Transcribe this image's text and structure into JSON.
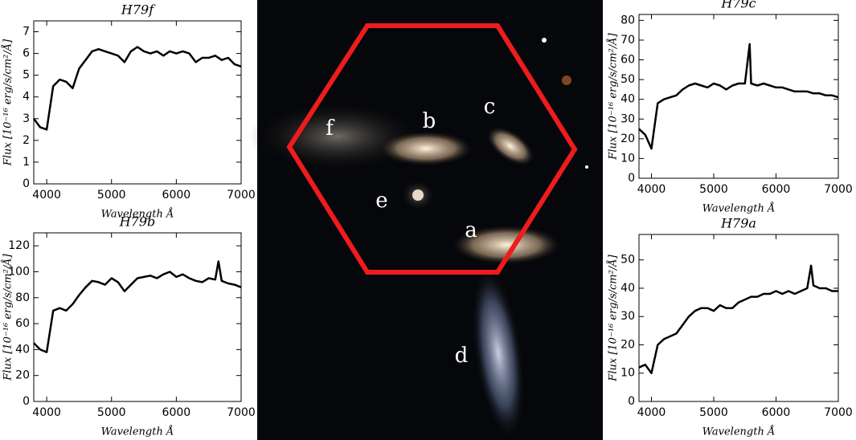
{
  "chart_data": [
    {
      "type": "line",
      "title": "H79f",
      "x_label": "Wavelength Å",
      "y_label": "Flux [10⁻¹⁶ erg/s/cm²/Å]",
      "x": [
        3800,
        3900,
        4000,
        4100,
        4200,
        4300,
        4400,
        4500,
        4600,
        4700,
        4800,
        4900,
        5000,
        5100,
        5200,
        5300,
        5400,
        5500,
        5600,
        5700,
        5800,
        5900,
        6000,
        6100,
        6200,
        6300,
        6400,
        6500,
        6600,
        6700,
        6800,
        6900,
        7000
      ],
      "series": [
        {
          "color": "#000000",
          "values": [
            3.0,
            2.6,
            2.5,
            4.5,
            4.8,
            4.7,
            4.4,
            5.3,
            5.7,
            6.1,
            6.2,
            6.1,
            6.0,
            5.9,
            5.6,
            6.1,
            6.3,
            6.1,
            6.0,
            6.1,
            5.9,
            6.1,
            6.0,
            6.1,
            6.0,
            5.6,
            5.8,
            5.8,
            5.9,
            5.7,
            5.8,
            5.5,
            5.4
          ]
        }
      ],
      "xlim": [
        3800,
        7000
      ],
      "xticks": [
        4000,
        5000,
        6000,
        7000
      ],
      "ylim": [
        0,
        7.5
      ],
      "yticks": [
        0,
        1,
        2,
        3,
        4,
        5,
        6,
        7
      ]
    },
    {
      "type": "line",
      "title": "H79b",
      "x_label": "Wavelength Å",
      "y_label": "Flux [10⁻¹⁶ erg/s/cm²/Å]",
      "x": [
        3800,
        3900,
        4000,
        4100,
        4200,
        4300,
        4400,
        4500,
        4600,
        4700,
        4800,
        4900,
        5000,
        5100,
        5200,
        5300,
        5400,
        5500,
        5600,
        5700,
        5800,
        5900,
        6000,
        6100,
        6200,
        6300,
        6400,
        6500,
        6600,
        6650,
        6700,
        6800,
        6900,
        7000
      ],
      "series": [
        {
          "color": "#000000",
          "values": [
            45,
            40,
            38,
            70,
            72,
            70,
            75,
            82,
            88,
            93,
            92,
            90,
            95,
            92,
            85,
            90,
            95,
            96,
            97,
            95,
            98,
            100,
            96,
            98,
            95,
            93,
            92,
            95,
            94,
            108,
            93,
            91,
            90,
            88
          ]
        }
      ],
      "xlim": [
        3800,
        7000
      ],
      "xticks": [
        4000,
        5000,
        6000,
        7000
      ],
      "ylim": [
        0,
        130
      ],
      "yticks": [
        0,
        20,
        40,
        60,
        80,
        100,
        120
      ]
    },
    {
      "type": "line",
      "title": "H79c",
      "x_label": "Wavelength Å",
      "y_label": "Flux [10⁻¹⁶ erg/s/cm²/Å]",
      "x": [
        3800,
        3900,
        4000,
        4100,
        4200,
        4300,
        4400,
        4500,
        4600,
        4700,
        4800,
        4900,
        5000,
        5100,
        5200,
        5300,
        5400,
        5500,
        5577,
        5600,
        5700,
        5800,
        5900,
        6000,
        6100,
        6200,
        6300,
        6400,
        6500,
        6600,
        6700,
        6800,
        6900,
        7000
      ],
      "series": [
        {
          "color": "#000000",
          "values": [
            25,
            22,
            15,
            38,
            40,
            41,
            42,
            45,
            47,
            48,
            47,
            46,
            48,
            47,
            45,
            47,
            48,
            48,
            68,
            48,
            47,
            48,
            47,
            46,
            46,
            45,
            44,
            44,
            44,
            43,
            43,
            42,
            42,
            41
          ]
        }
      ],
      "xlim": [
        3800,
        7000
      ],
      "xticks": [
        4000,
        5000,
        6000,
        7000
      ],
      "ylim": [
        0,
        83
      ],
      "yticks": [
        0,
        10,
        20,
        30,
        40,
        50,
        60,
        70,
        80
      ]
    },
    {
      "type": "line",
      "title": "H79a",
      "x_label": "Wavelength Å",
      "y_label": "Flux [10⁻¹⁶ erg/s/cm²/Å]",
      "x": [
        3800,
        3900,
        4000,
        4100,
        4200,
        4300,
        4400,
        4500,
        4600,
        4700,
        4800,
        4900,
        5000,
        5100,
        5200,
        5300,
        5400,
        5500,
        5600,
        5700,
        5800,
        5900,
        6000,
        6100,
        6200,
        6300,
        6400,
        6500,
        6563,
        6600,
        6700,
        6800,
        6900,
        7000
      ],
      "series": [
        {
          "color": "#000000",
          "values": [
            12,
            13,
            10,
            20,
            22,
            23,
            24,
            27,
            30,
            32,
            33,
            33,
            32,
            34,
            33,
            33,
            35,
            36,
            37,
            37,
            38,
            38,
            39,
            38,
            39,
            38,
            39,
            40,
            48,
            41,
            40,
            40,
            39,
            39
          ]
        }
      ],
      "xlim": [
        3800,
        7000
      ],
      "xticks": [
        4000,
        5000,
        6000,
        7000
      ],
      "ylim": [
        0,
        59
      ],
      "yticks": [
        0,
        10,
        20,
        30,
        40,
        50
      ]
    }
  ],
  "image": {
    "labels": [
      "a",
      "b",
      "c",
      "d",
      "e",
      "f"
    ]
  }
}
